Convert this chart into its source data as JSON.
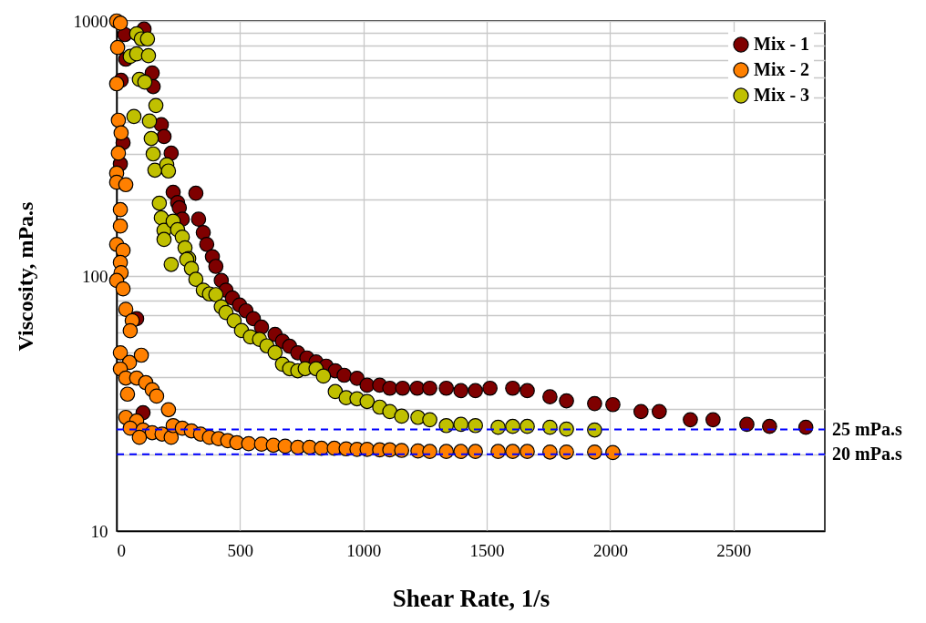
{
  "chart_data": {
    "type": "scatter",
    "xlabel": "Shear Rate, 1/s",
    "ylabel": "Viscosity, mPa.s",
    "xlim": [
      0,
      2870
    ],
    "xticks": [
      0,
      500,
      1000,
      1500,
      2000,
      2500
    ],
    "ylim": [
      10,
      1000
    ],
    "yticks": [
      10,
      {
        "value": 20,
        "label": null
      },
      {
        "value": 30,
        "label": null
      },
      {
        "value": 40,
        "label": null
      },
      {
        "value": 50,
        "label": null
      },
      {
        "value": 60,
        "label": null
      },
      {
        "value": 70,
        "label": null
      },
      {
        "value": 80,
        "label": null
      },
      {
        "value": 90,
        "label": null
      },
      100,
      {
        "value": 200,
        "label": null
      },
      {
        "value": 300,
        "label": null
      },
      {
        "value": 400,
        "label": null
      },
      {
        "value": 500,
        "label": null
      },
      {
        "value": 600,
        "label": null
      },
      {
        "value": 700,
        "label": null
      },
      {
        "value": 800,
        "label": null
      },
      {
        "value": 900,
        "label": null
      },
      1000
    ],
    "log": "y",
    "grid": true,
    "legend": "top right",
    "marker": "circle",
    "series": [
      {
        "name": "Mix - 1",
        "color": "#7f0000",
        "x": [
          18,
          26,
          15,
          33,
          37,
          81,
          107,
          111,
          144,
          148,
          181,
          192,
          221,
          229,
          247,
          254,
          266,
          321,
          332,
          351,
          365,
          388,
          402,
          424,
          443,
          469,
          498,
          524,
          554,
          587,
          642,
          672,
          701,
          734,
          771,
          808,
          849,
          886,
          922,
          974,
          1015,
          1066,
          1107,
          1159,
          1218,
          1269,
          1336,
          1395,
          1454,
          1513,
          1605,
          1664,
          1756,
          1823,
          1937,
          2011,
          2125,
          2199,
          2325,
          2417,
          2554,
          2646,
          2793
        ],
        "values": [
          585,
          333,
          275,
          884,
          708,
          68,
          29.1,
          929,
          625,
          553,
          392,
          352,
          303,
          213,
          194,
          185,
          167,
          211,
          167,
          148,
          133,
          119,
          109,
          96,
          88,
          82,
          77,
          73,
          68,
          63,
          59,
          55.5,
          53,
          50,
          47.7,
          46,
          44.3,
          42.5,
          40.8,
          39.7,
          37.3,
          37.3,
          36.3,
          36.3,
          36.3,
          36.3,
          36.3,
          35.5,
          35.5,
          36.3,
          36.3,
          35.5,
          33.6,
          32.4,
          31.6,
          31.3,
          29.4,
          29.4,
          27.3,
          27.3,
          26.2,
          25.7,
          25.5
        ]
      },
      {
        "name": "Mix - 2",
        "color": "#ff8000",
        "x": [
          0,
          15,
          4,
          0,
          7,
          18,
          7,
          0,
          0,
          37,
          15,
          15,
          0,
          26,
          15,
          18,
          0,
          26,
          37,
          63,
          55,
          15,
          100,
          52,
          15,
          37,
          81,
          118,
          144,
          162,
          44,
          210,
          37,
          81,
          55,
          107,
          144,
          184,
          221,
          92,
          229,
          266,
          303,
          340,
          376,
          413,
          450,
          487,
          535,
          587,
          635,
          683,
          734,
          782,
          830,
          882,
          930,
          974,
          1015,
          1066,
          1107,
          1155,
          1221,
          1269,
          1336,
          1395,
          1454,
          1546,
          1605,
          1664,
          1756,
          1823,
          1937,
          2011
        ],
        "values": [
          1000,
          980,
          787,
          567,
          408,
          364,
          303,
          253,
          233,
          228,
          182,
          157,
          133,
          126,
          113,
          103,
          96,
          89,
          74,
          66.8,
          61,
          50,
          48.9,
          45.8,
          43.2,
          39.8,
          39.8,
          38.2,
          35.8,
          33.8,
          34.4,
          29.9,
          27.9,
          27,
          25.3,
          24.9,
          24.3,
          24,
          23.3,
          23.3,
          25.9,
          25.3,
          24.7,
          24,
          23.3,
          23,
          22.6,
          22.2,
          22,
          21.9,
          21.7,
          21.5,
          21.3,
          21.3,
          21.1,
          21.1,
          21,
          20.9,
          20.9,
          20.8,
          20.8,
          20.7,
          20.6,
          20.5,
          20.5,
          20.5,
          20.5,
          20.5,
          20.5,
          20.5,
          20.4,
          20.4,
          20.4,
          20.3
        ]
      },
      {
        "name": "Mix - 3",
        "color": "#c0c000",
        "x": [
          81,
          100,
          125,
          55,
          81,
          129,
          92,
          114,
          159,
          70,
          133,
          140,
          148,
          155,
          203,
          210,
          173,
          181,
          192,
          192,
          229,
          247,
          266,
          277,
          292,
          221,
          284,
          303,
          321,
          351,
          376,
          402,
          424,
          443,
          476,
          506,
          542,
          579,
          609,
          642,
          672,
          701,
          734,
          764,
          808,
          838,
          886,
          930,
          974,
          1015,
          1066,
          1107,
          1155,
          1221,
          1269,
          1336,
          1395,
          1454,
          1546,
          1605,
          1664,
          1756,
          1823,
          1937
        ],
        "values": [
          891,
          850,
          850,
          726,
          743,
          731,
          590,
          576,
          466,
          422,
          405,
          346,
          301,
          260,
          273,
          258,
          193,
          169,
          151,
          139,
          164,
          152,
          142,
          129,
          117,
          111,
          116,
          107,
          97,
          88,
          85,
          84.5,
          75.7,
          71.9,
          66.8,
          61.1,
          57.7,
          56.4,
          53.2,
          50.1,
          45.1,
          43.3,
          42.5,
          43.3,
          43.3,
          40.5,
          35.2,
          33.3,
          33,
          32.2,
          30.6,
          29.4,
          28.2,
          27.9,
          27.3,
          25.9,
          26.2,
          25.9,
          25.5,
          25.7,
          25.7,
          25.5,
          25.1,
          24.9
        ]
      }
    ],
    "ref_lines": [
      {
        "axis": "y",
        "value": 25,
        "label": "25  mPa.s",
        "color": "#0000ff",
        "line_style": "dashed"
      },
      {
        "axis": "y",
        "value": 20,
        "label": "20 mPa.s",
        "color": "#0000ff",
        "line_style": "dashed"
      }
    ]
  }
}
